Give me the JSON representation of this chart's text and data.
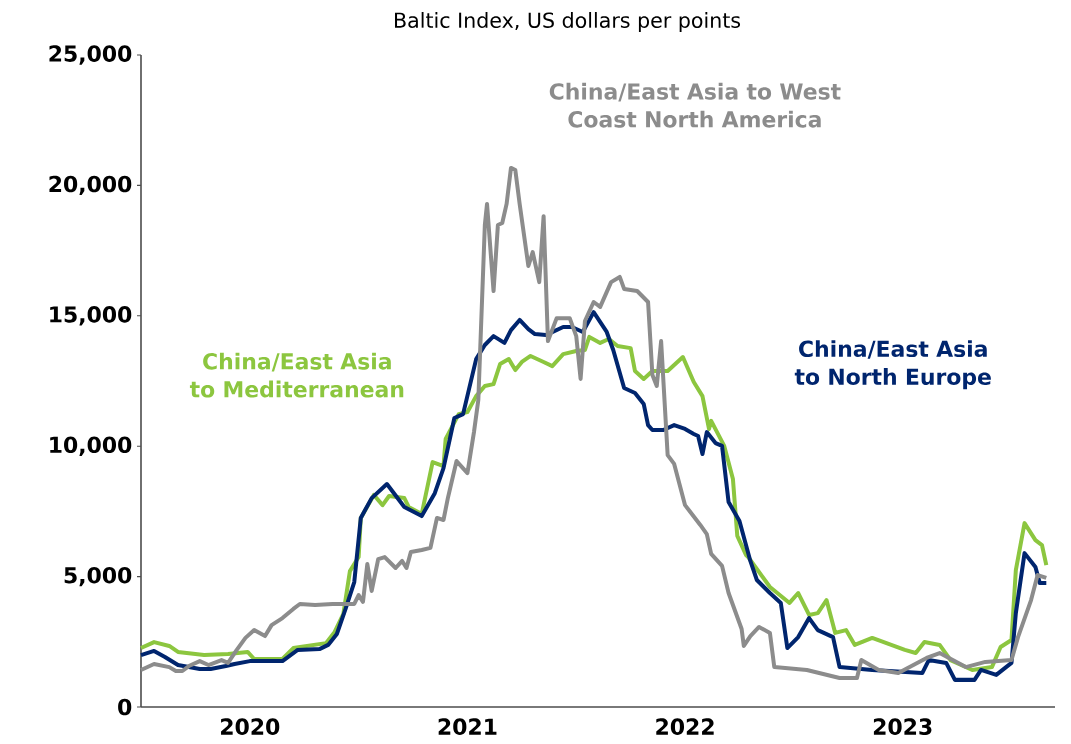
{
  "chart_data": {
    "type": "line",
    "title": "Baltic Index, US dollars per points",
    "xlim": [
      2020,
      2024.2
    ],
    "ylim": [
      0,
      25000
    ],
    "xticks": [
      {
        "value": 2020.5,
        "label": "2020"
      },
      {
        "value": 2021.5,
        "label": "2021"
      },
      {
        "value": 2022.5,
        "label": "2022"
      },
      {
        "value": 2023.5,
        "label": "2023"
      }
    ],
    "yticks": [
      0,
      {
        "value": 5000,
        "label": "5,000"
      },
      {
        "value": 10000,
        "label": "10,000"
      },
      {
        "value": 15000,
        "label": "15,000"
      },
      {
        "value": 20000,
        "label": "20,000"
      },
      {
        "value": 25000,
        "label": "25,000"
      }
    ],
    "series": [
      {
        "name": "China/East Asia to Mediterranean",
        "color": "#8cc63f",
        "x": [
          2020.0,
          2020.06,
          2020.13,
          2020.17,
          2020.29,
          2020.4,
          2020.49,
          2020.52,
          2020.65,
          2020.7,
          2020.85,
          2020.89,
          2020.93,
          2020.96,
          2021.0,
          2021.01,
          2021.07,
          2021.11,
          2021.14,
          2021.21,
          2021.23,
          2021.29,
          2021.34,
          2021.39,
          2021.4,
          2021.46,
          2021.5,
          2021.54,
          2021.58,
          2021.62,
          2021.65,
          2021.69,
          2021.72,
          2021.75,
          2021.79,
          2021.85,
          2021.89,
          2021.94,
          2022.0,
          2022.04,
          2022.06,
          2022.11,
          2022.15,
          2022.19,
          2022.25,
          2022.27,
          2022.31,
          2022.35,
          2022.42,
          2022.49,
          2022.54,
          2022.58,
          2022.61,
          2022.62,
          2022.68,
          2022.72,
          2022.74,
          2022.78,
          2022.79,
          2022.89,
          2022.98,
          2023.02,
          2023.07,
          2023.11,
          2023.15,
          2023.19,
          2023.24,
          2023.28,
          2023.36,
          2023.51,
          2023.56,
          2023.6,
          2023.67,
          2023.72,
          2023.82,
          2023.91,
          2023.95,
          2024.0,
          2024.02,
          2024.06,
          2024.11,
          2024.14,
          2024.16
        ],
        "values": [
          2260,
          2490,
          2340,
          2110,
          1990,
          2030,
          2110,
          1840,
          1840,
          2260,
          2450,
          2880,
          3570,
          5210,
          5750,
          7250,
          8130,
          7740,
          8090,
          8010,
          7670,
          7400,
          9390,
          9240,
          10280,
          11230,
          11310,
          11920,
          12310,
          12380,
          13150,
          13340,
          12920,
          13230,
          13460,
          13230,
          13070,
          13530,
          13650,
          13690,
          14190,
          13960,
          14110,
          13840,
          13760,
          12880,
          12580,
          12880,
          12880,
          13420,
          12460,
          11920,
          10660,
          10970,
          10010,
          8740,
          6560,
          5830,
          5750,
          4600,
          3990,
          4370,
          3530,
          3600,
          4100,
          2840,
          2950,
          2380,
          2650,
          2190,
          2070,
          2490,
          2380,
          1800,
          1420,
          1530,
          2300,
          2570,
          5250,
          7050,
          6400,
          6210,
          5440
        ]
      },
      {
        "name": "China/East Asia to North Europe",
        "color": "#00256e",
        "x": [
          2020.0,
          2020.06,
          2020.11,
          2020.17,
          2020.27,
          2020.32,
          2020.39,
          2020.43,
          2020.5,
          2020.65,
          2020.72,
          2020.82,
          2020.86,
          2020.9,
          2020.94,
          2020.98,
          2021.01,
          2021.06,
          2021.13,
          2021.21,
          2021.29,
          2021.35,
          2021.39,
          2021.44,
          2021.48,
          2021.54,
          2021.58,
          2021.62,
          2021.67,
          2021.7,
          2021.74,
          2021.78,
          2021.81,
          2021.86,
          2021.94,
          2021.98,
          2022.03,
          2022.08,
          2022.14,
          2022.17,
          2022.22,
          2022.27,
          2022.31,
          2022.33,
          2022.35,
          2022.4,
          2022.45,
          2022.5,
          2022.54,
          2022.56,
          2022.58,
          2022.6,
          2022.64,
          2022.67,
          2022.7,
          2022.75,
          2022.8,
          2022.83,
          2022.89,
          2022.94,
          2022.97,
          2023.02,
          2023.07,
          2023.11,
          2023.18,
          2023.21,
          2023.36,
          2023.59,
          2023.62,
          2023.7,
          2023.74,
          2023.83,
          2023.86,
          2023.93,
          2024.0,
          2024.02,
          2024.06,
          2024.11,
          2024.13,
          2024.16
        ],
        "values": [
          1990,
          2150,
          1920,
          1610,
          1460,
          1460,
          1570,
          1650,
          1760,
          1760,
          2190,
          2220,
          2380,
          2800,
          3760,
          4790,
          7250,
          8010,
          8550,
          7670,
          7320,
          8200,
          9160,
          11080,
          11230,
          13340,
          13880,
          14220,
          13960,
          14450,
          14840,
          14490,
          14300,
          14260,
          14570,
          14570,
          14380,
          15140,
          14380,
          13690,
          12230,
          12040,
          11620,
          10810,
          10620,
          10620,
          10810,
          10660,
          10470,
          10390,
          9700,
          10540,
          10120,
          10010,
          7860,
          7130,
          5600,
          4870,
          4370,
          3990,
          2260,
          2680,
          3410,
          2950,
          2680,
          1530,
          1420,
          1300,
          1800,
          1690,
          1040,
          1040,
          1420,
          1230,
          1690,
          3600,
          5900,
          5370,
          4750,
          4750
        ]
      },
      {
        "name": "China/East Asia to West Coast North America",
        "color": "#8c8c8c",
        "x": [
          2020.0,
          2020.06,
          2020.13,
          2020.16,
          2020.19,
          2020.22,
          2020.27,
          2020.31,
          2020.37,
          2020.4,
          2020.44,
          2020.48,
          2020.52,
          2020.57,
          2020.6,
          2020.65,
          2020.7,
          2020.73,
          2020.8,
          2020.88,
          2020.98,
          2021.0,
          2021.02,
          2021.04,
          2021.06,
          2021.09,
          2021.12,
          2021.17,
          2021.2,
          2021.22,
          2021.24,
          2021.29,
          2021.33,
          2021.36,
          2021.39,
          2021.41,
          2021.45,
          2021.5,
          2021.53,
          2021.55,
          2021.58,
          2021.59,
          2021.62,
          2021.64,
          2021.66,
          2021.68,
          2021.7,
          2021.72,
          2021.74,
          2021.78,
          2021.8,
          2021.83,
          2021.85,
          2021.87,
          2021.91,
          2021.97,
          2022.0,
          2022.02,
          2022.04,
          2022.08,
          2022.11,
          2022.16,
          2022.2,
          2022.22,
          2022.28,
          2022.33,
          2022.35,
          2022.37,
          2022.39,
          2022.42,
          2022.45,
          2022.5,
          2022.57,
          2022.6,
          2022.62,
          2022.67,
          2022.7,
          2022.76,
          2022.77,
          2022.8,
          2022.84,
          2022.89,
          2022.91,
          2023.06,
          2023.21,
          2023.29,
          2023.31,
          2023.39,
          2023.48,
          2023.61,
          2023.67,
          2023.79,
          2023.88,
          2024.0,
          2024.03,
          2024.09,
          2024.12,
          2024.16
        ],
        "values": [
          1420,
          1650,
          1530,
          1380,
          1380,
          1570,
          1760,
          1610,
          1800,
          1690,
          2190,
          2650,
          2950,
          2720,
          3140,
          3410,
          3760,
          3950,
          3910,
          3950,
          3950,
          4290,
          4030,
          5480,
          4450,
          5670,
          5750,
          5330,
          5600,
          5330,
          5940,
          6020,
          6100,
          7250,
          7170,
          8010,
          9430,
          8970,
          10540,
          11770,
          18480,
          19290,
          15950,
          18480,
          18560,
          19290,
          20670,
          20590,
          19290,
          16910,
          17440,
          16290,
          18820,
          14030,
          14910,
          14910,
          14220,
          12580,
          14800,
          15530,
          15340,
          16290,
          16490,
          16030,
          15950,
          15530,
          12730,
          12310,
          14030,
          9660,
          9320,
          7740,
          6980,
          6630,
          5870,
          5410,
          4370,
          2990,
          2340,
          2720,
          3070,
          2840,
          1530,
          1420,
          1110,
          1110,
          1800,
          1420,
          1300,
          1880,
          2070,
          1530,
          1730,
          1800,
          2680,
          4100,
          5060,
          4950
        ]
      }
    ]
  }
}
